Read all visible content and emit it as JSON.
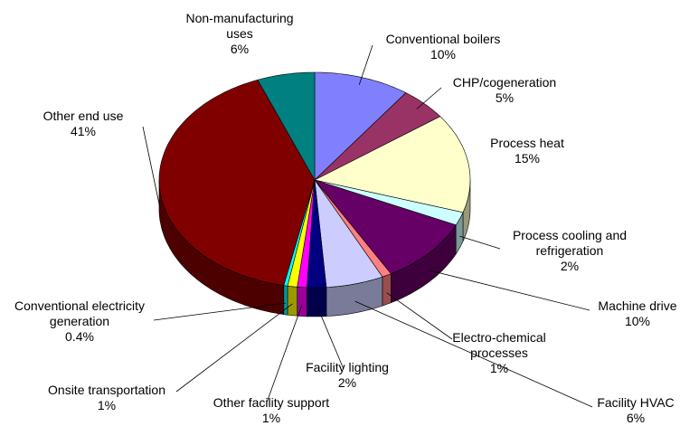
{
  "chart_data": {
    "type": "pie",
    "categories": [
      "Conventional boilers",
      "CHP/cogeneration",
      "Process heat",
      "Process cooling and refrigeration",
      "Machine drive",
      "Electro-chemical processes",
      "Facility HVAC",
      "Facility lighting",
      "Other facility support",
      "Onsite transportation",
      "Conventional electricity generation",
      "Other end use",
      "Non-manufacturing uses"
    ],
    "values": [
      10,
      5,
      15,
      2,
      10,
      1,
      6,
      2,
      1,
      1,
      0.4,
      41,
      6
    ],
    "value_labels": [
      "10%",
      "5%",
      "15%",
      "2%",
      "10%",
      "1%",
      "6%",
      "2%",
      "1%",
      "1%",
      "0.4%",
      "41%",
      "6%"
    ],
    "colors": [
      "#8080ff",
      "#993366",
      "#ffffcc",
      "#ccffff",
      "#660066",
      "#ff8080",
      "#ccccff",
      "#000080",
      "#ff00ff",
      "#ffff00",
      "#00ffff",
      "#800000",
      "#008080"
    ]
  }
}
